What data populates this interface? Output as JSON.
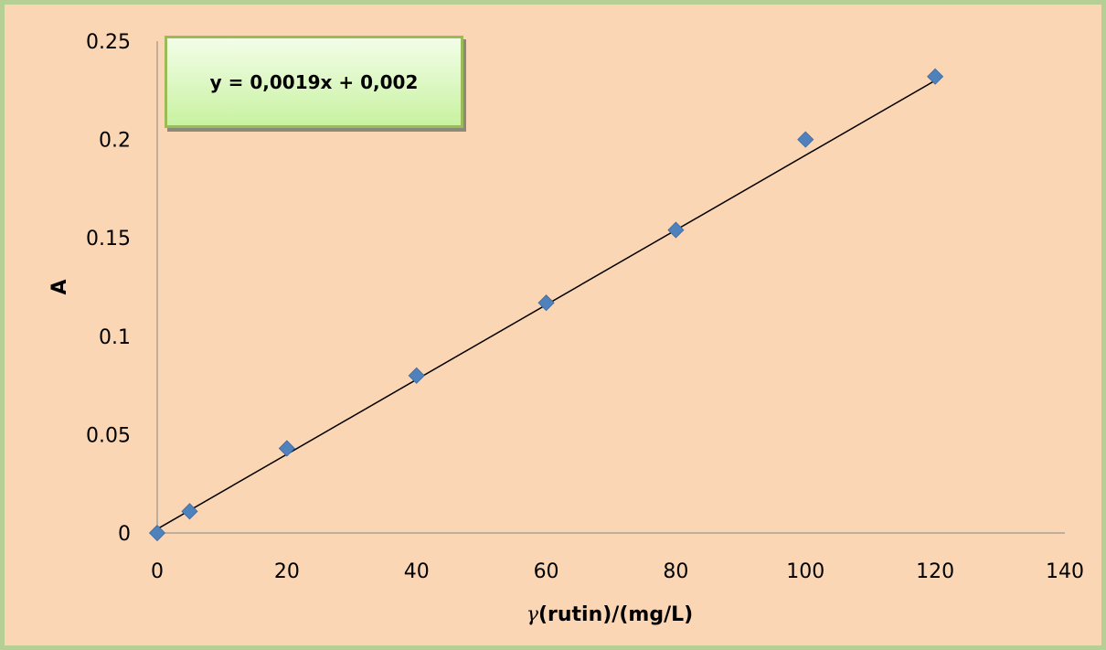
{
  "chart_data": {
    "type": "scatter",
    "title": "",
    "xlabel": "γ(rutin)/(mg/L)",
    "xlabel_parts": {
      "symbol": "γ",
      "rest": "(rutin)/(mg/L)"
    },
    "ylabel": "A",
    "xlim": [
      0,
      140
    ],
    "ylim": [
      0,
      0.25
    ],
    "x_ticks": [
      "0",
      "20",
      "40",
      "60",
      "80",
      "100",
      "120",
      "140"
    ],
    "y_ticks": [
      "0",
      "0.05",
      "0.1",
      "0.15",
      "0.2",
      "0.25"
    ],
    "x_tick_values": [
      0,
      20,
      40,
      60,
      80,
      100,
      120,
      140
    ],
    "y_tick_values": [
      0,
      0.05,
      0.1,
      0.15,
      0.2,
      0.25
    ],
    "grid": false,
    "legend": "none",
    "series": [
      {
        "marker": "diamond",
        "color": "#4f81bd",
        "x": [
          0,
          5,
          20,
          40,
          60,
          80,
          100,
          120
        ],
        "y": [
          0.0,
          0.011,
          0.043,
          0.08,
          0.117,
          0.154,
          0.2,
          0.232
        ]
      }
    ],
    "trendline": {
      "type": "linear",
      "slope": 0.0019,
      "intercept": 0.002,
      "x_range": [
        0,
        120
      ],
      "color": "#000000",
      "equation_label": "y = 0,0019x + 0,002"
    },
    "colors": {
      "background": "#fbd6b4",
      "frame_border": "#b5cf95",
      "axis": "#868686",
      "marker": "#4f81bd",
      "equation_box_border": "#9bbb59"
    }
  }
}
